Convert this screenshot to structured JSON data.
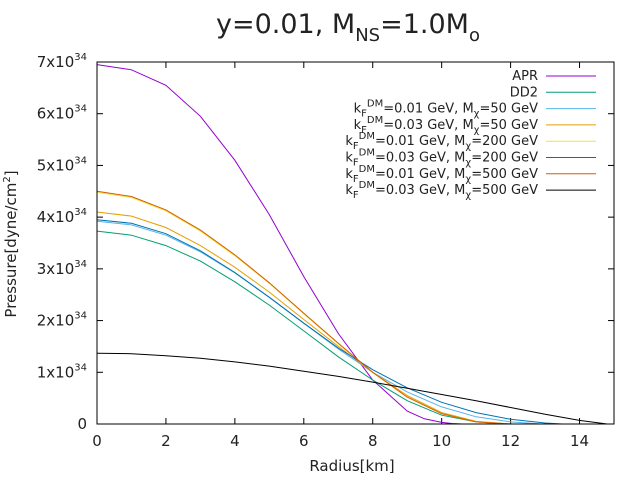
{
  "chart_data": {
    "type": "line",
    "title_parts": {
      "prefix": "y=0.01, M",
      "sub1": "NS",
      "mid": "=1.0M",
      "sub2": "o"
    },
    "xlabel": "Radius[km]",
    "ylabel": "Pressure[dyne/cm",
    "ylabel_sup": "2",
    "ylabel_end": "]",
    "xlim": [
      0,
      15
    ],
    "ylim": [
      0,
      7.0
    ],
    "x_ticks": [
      {
        "value": 0,
        "label": "0"
      },
      {
        "value": 2,
        "label": "2"
      },
      {
        "value": 4,
        "label": "4"
      },
      {
        "value": 6,
        "label": "6"
      },
      {
        "value": 8,
        "label": "8"
      },
      {
        "value": 10,
        "label": "10"
      },
      {
        "value": 12,
        "label": "12"
      },
      {
        "value": 14,
        "label": "14"
      }
    ],
    "y_ticks": [
      {
        "value": 0,
        "label": "0",
        "mant": "",
        "exp": ""
      },
      {
        "value": 1,
        "label": "",
        "mant": "1x10",
        "exp": "34"
      },
      {
        "value": 2,
        "label": "",
        "mant": "2x10",
        "exp": "34"
      },
      {
        "value": 3,
        "label": "",
        "mant": "3x10",
        "exp": "34"
      },
      {
        "value": 4,
        "label": "",
        "mant": "4x10",
        "exp": "34"
      },
      {
        "value": 5,
        "label": "",
        "mant": "5x10",
        "exp": "34"
      },
      {
        "value": 6,
        "label": "",
        "mant": "6x10",
        "exp": "34"
      },
      {
        "value": 7,
        "label": "",
        "mant": "7x10",
        "exp": "34"
      }
    ],
    "y_unit_note": "Pressure values in units of 10^34 dyne/cm^2",
    "legend_position": "top-right",
    "series": [
      {
        "name": "APR",
        "legend": {
          "plain": "APR"
        },
        "color": "#9400d3",
        "x": [
          0,
          1,
          2,
          3,
          4,
          5,
          6,
          7,
          8,
          9,
          9.5,
          10,
          10.3,
          10.6
        ],
        "y": [
          6.95,
          6.85,
          6.55,
          5.95,
          5.1,
          4.05,
          2.85,
          1.75,
          0.85,
          0.25,
          0.1,
          0.03,
          0.01,
          0
        ]
      },
      {
        "name": "DD2",
        "legend": {
          "plain": "DD2"
        },
        "color": "#009e73",
        "x": [
          0,
          1,
          2,
          3,
          4,
          5,
          6,
          7,
          8,
          9,
          10,
          11,
          11.8
        ],
        "y": [
          3.73,
          3.65,
          3.45,
          3.15,
          2.75,
          2.3,
          1.8,
          1.3,
          0.85,
          0.45,
          0.17,
          0.04,
          0
        ]
      },
      {
        "name": "kF=0.01 GeV, Mchi=50 GeV",
        "legend": {
          "val": "=0.01 GeV, M",
          "mass": "=50 GeV"
        },
        "color": "#56b4e9",
        "x": [
          0,
          1,
          2,
          3,
          4,
          5,
          6,
          7,
          8,
          9,
          10,
          11,
          12,
          12.9
        ],
        "y": [
          3.92,
          3.85,
          3.65,
          3.33,
          2.92,
          2.45,
          1.95,
          1.45,
          1.0,
          0.62,
          0.33,
          0.14,
          0.04,
          0
        ]
      },
      {
        "name": "kF=0.03 GeV, Mchi=50 GeV",
        "legend": {
          "val": "=0.03 GeV, M",
          "mass": "=50 GeV"
        },
        "color": "#e69f00",
        "x": [
          0,
          1,
          2,
          3,
          4,
          5,
          6,
          7,
          8,
          9,
          10,
          11,
          12
        ],
        "y": [
          4.1,
          4.02,
          3.8,
          3.45,
          3.03,
          2.55,
          2.02,
          1.5,
          1.0,
          0.55,
          0.22,
          0.05,
          0
        ]
      },
      {
        "name": "kF=0.01 GeV, Mchi=200 GeV",
        "legend": {
          "val": "=0.01 GeV, M",
          "mass": "=200 GeV"
        },
        "color": "#f0e442",
        "x": [
          0,
          1,
          2,
          3,
          4,
          5,
          6,
          7,
          8,
          9,
          10,
          11,
          12
        ],
        "y": [
          4.48,
          4.38,
          4.12,
          3.73,
          3.25,
          2.72,
          2.13,
          1.55,
          1.0,
          0.52,
          0.2,
          0.04,
          0
        ]
      },
      {
        "name": "kF=0.03 GeV, Mchi=200 GeV",
        "legend": {
          "val": "=0.03 GeV, M",
          "mass": "=200 GeV"
        },
        "color": "#0072b2",
        "x": [
          0,
          1,
          2,
          3,
          4,
          5,
          6,
          7,
          8,
          9,
          10,
          11,
          12,
          13,
          13.5
        ],
        "y": [
          3.95,
          3.88,
          3.68,
          3.35,
          2.93,
          2.45,
          1.95,
          1.47,
          1.05,
          0.7,
          0.42,
          0.22,
          0.09,
          0.02,
          0
        ]
      },
      {
        "name": "kF=0.01 GeV, Mchi=500 GeV",
        "legend": {
          "val": "=0.01 GeV, M",
          "mass": "=500 GeV"
        },
        "color": "#d55e00",
        "x": [
          0,
          1,
          2,
          3,
          4,
          5,
          6,
          7,
          8,
          9,
          10,
          11,
          12
        ],
        "y": [
          4.5,
          4.4,
          4.14,
          3.75,
          3.27,
          2.73,
          2.14,
          1.56,
          1.0,
          0.52,
          0.2,
          0.04,
          0
        ]
      },
      {
        "name": "kF=0.03 GeV, Mchi=500 GeV",
        "legend": {
          "val": "=0.03 GeV, M",
          "mass": "=500 GeV"
        },
        "color": "#000000",
        "x": [
          0,
          1,
          2,
          3,
          4,
          5,
          6,
          7,
          8,
          9,
          10,
          11,
          12,
          13,
          14,
          14.8
        ],
        "y": [
          1.37,
          1.36,
          1.32,
          1.27,
          1.2,
          1.12,
          1.02,
          0.92,
          0.81,
          0.69,
          0.57,
          0.45,
          0.32,
          0.19,
          0.07,
          0
        ]
      }
    ],
    "legend_sym": {
      "k": "k",
      "F": "F",
      "DM": "DM",
      "chi": "χ"
    }
  }
}
